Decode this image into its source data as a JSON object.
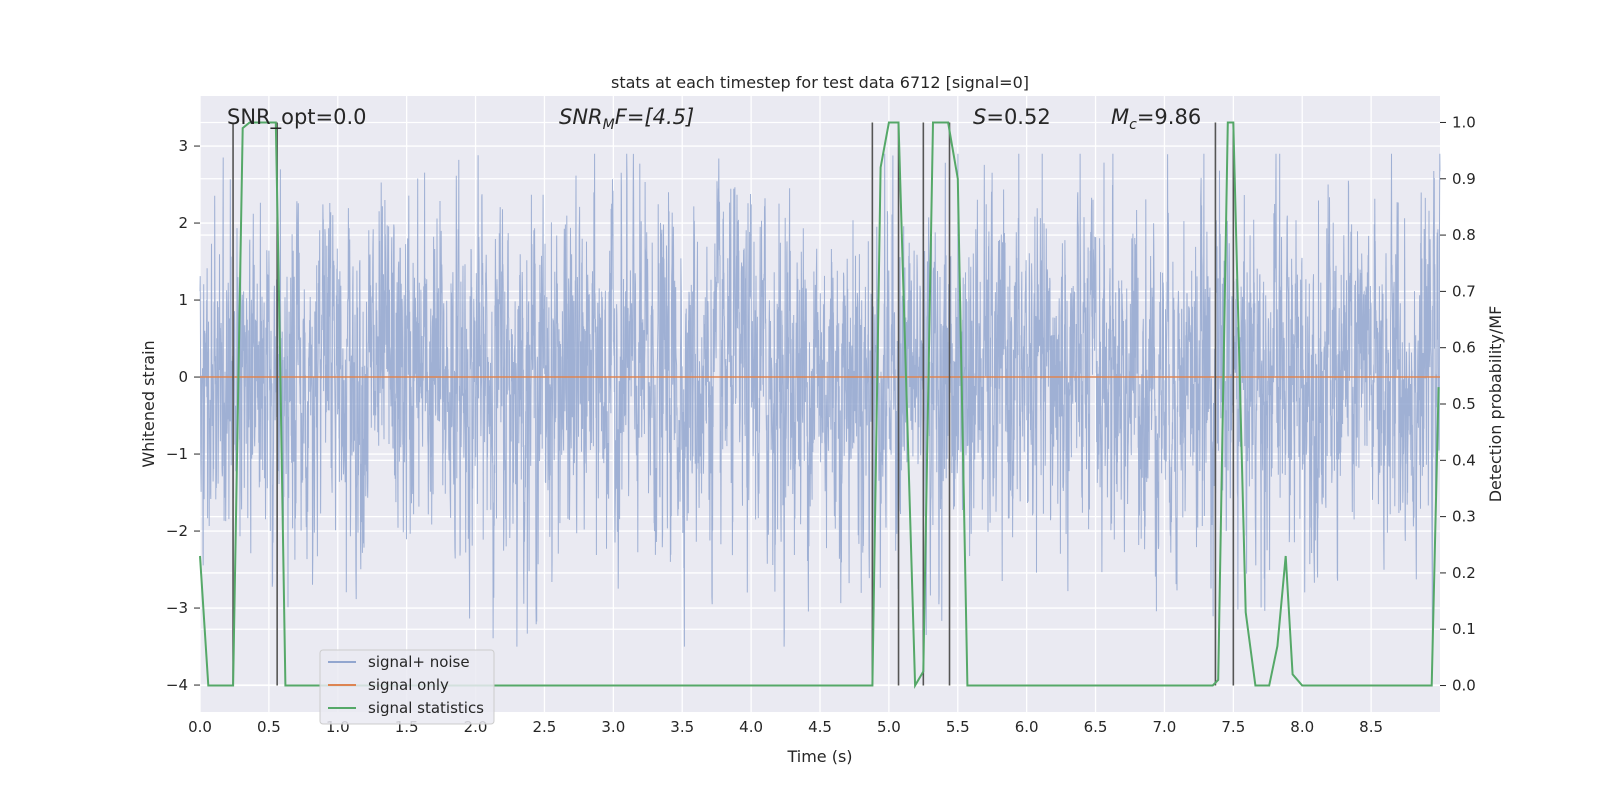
{
  "chart_data": {
    "type": "line",
    "title": "stats at each timestep for test data 6712 [signal=0]",
    "xlabel": "Time (s)",
    "ylabel_left": "Whitened strain",
    "ylabel_right": "Detection probability/MF",
    "xlim": [
      0.0,
      9.0
    ],
    "ylim_left": [
      -4.35,
      3.65
    ],
    "ylim_right": [
      -0.047,
      1.047
    ],
    "xticks": [
      "0.0",
      "0.5",
      "1.0",
      "1.5",
      "2.0",
      "2.5",
      "3.0",
      "3.5",
      "4.0",
      "4.5",
      "5.0",
      "5.5",
      "6.0",
      "6.5",
      "7.0",
      "7.5",
      "8.0",
      "8.5"
    ],
    "yticks_left": [
      "3",
      "2",
      "1",
      "0",
      "−1",
      "−2",
      "−3",
      "−4"
    ],
    "yticks_left_values": [
      3,
      2,
      1,
      0,
      -1,
      -2,
      -3,
      -4
    ],
    "yticks_right": [
      "1.0",
      "0.9",
      "0.8",
      "0.7",
      "0.6",
      "0.5",
      "0.4",
      "0.3",
      "0.2",
      "0.1",
      "0.0"
    ],
    "yticks_right_values": [
      1.0,
      0.9,
      0.8,
      0.7,
      0.6,
      0.5,
      0.4,
      0.3,
      0.2,
      0.1,
      0.0
    ],
    "grid": true,
    "legend_position": "lower-left",
    "annotations": {
      "snr_opt": "SNR_opt=0.0",
      "snr_mf_prefix": "SNR",
      "snr_mf_sub": "M",
      "snr_mf_suffix": "F=[4.5]",
      "s_prefix": "S",
      "s_suffix": "=0.52",
      "mc_prefix": "M",
      "mc_sub": "c",
      "mc_suffix": "=9.86"
    },
    "series": [
      {
        "name": "signal+ noise",
        "color": "#92a6cf",
        "axis": "left",
        "note": "noise trace sampled densely over 0-9 s, amplitude within about -3.5 to 2.9",
        "x_range": [
          0.0,
          9.0
        ]
      },
      {
        "name": "signal only",
        "color": "#dd8452",
        "axis": "left",
        "x": [
          0.0,
          9.0
        ],
        "y": [
          0.0,
          0.0
        ]
      },
      {
        "name": "signal statistics",
        "color": "#55a868",
        "axis": "right",
        "x": [
          0.0,
          0.06,
          0.24,
          0.31,
          0.36,
          0.43,
          0.47,
          0.55,
          0.58,
          0.62,
          0.7,
          4.88,
          4.94,
          5.0,
          5.07,
          5.19,
          5.25,
          5.32,
          5.37,
          5.43,
          5.5,
          5.57,
          5.6,
          5.9,
          7.35,
          7.39,
          7.46,
          7.5,
          7.59,
          7.66,
          7.76,
          7.82,
          7.88,
          7.93,
          8.0,
          8.5,
          8.94,
          8.99
        ],
        "y": [
          0.23,
          0.0,
          0.0,
          0.99,
          1.0,
          1.0,
          1.0,
          1.0,
          0.6,
          0.0,
          0.0,
          0.0,
          0.92,
          1.0,
          1.0,
          0.0,
          0.025,
          1.0,
          1.0,
          1.0,
          0.9,
          0.0,
          0.0,
          0.0,
          0.0,
          0.01,
          1.0,
          1.0,
          0.13,
          0.0,
          0.0,
          0.07,
          0.23,
          0.02,
          0.0,
          0.0,
          0.0,
          0.53
        ]
      }
    ],
    "vertical_markers": {
      "color": "#555555",
      "x": [
        0.24,
        0.56,
        4.88,
        5.07,
        5.25,
        5.44,
        7.37,
        7.5
      ],
      "y_top": 1.0,
      "y_bottom": 0.0
    }
  },
  "legend": {
    "items": [
      {
        "label": "signal+ noise",
        "color": "#92a6cf"
      },
      {
        "label": "signal only",
        "color": "#dd8452"
      },
      {
        "label": "signal statistics",
        "color": "#55a868"
      }
    ]
  },
  "colors": {
    "plot_background": "#eaeaf2",
    "grid": "#ffffff"
  }
}
